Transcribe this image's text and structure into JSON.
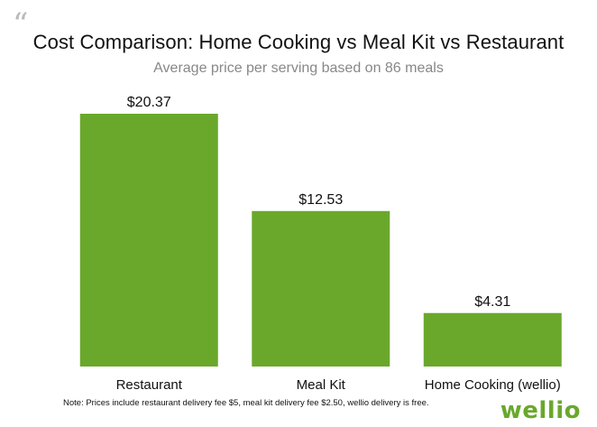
{
  "decor": {
    "quote_glyph": "“"
  },
  "chart_data": {
    "type": "bar",
    "title": "Cost Comparison: Home Cooking vs Meal Kit vs Restaurant",
    "subtitle": "Average price per serving based on 86 meals",
    "categories": [
      "Restaurant",
      "Meal Kit",
      "Home Cooking (wellio)"
    ],
    "values": [
      20.37,
      12.53,
      4.31
    ],
    "data_labels": [
      "$20.37",
      "$12.53",
      "$4.31"
    ],
    "ylim": [
      0,
      20.37
    ],
    "grid": false,
    "legend": "none",
    "bar_color": "#6aa82c",
    "note": "Note: Prices include restaurant delivery fee $5, meal kit delivery fee $2.50, wellio delivery is free."
  },
  "brand": {
    "logo_text": "wellio",
    "color": "#6aa82c"
  }
}
